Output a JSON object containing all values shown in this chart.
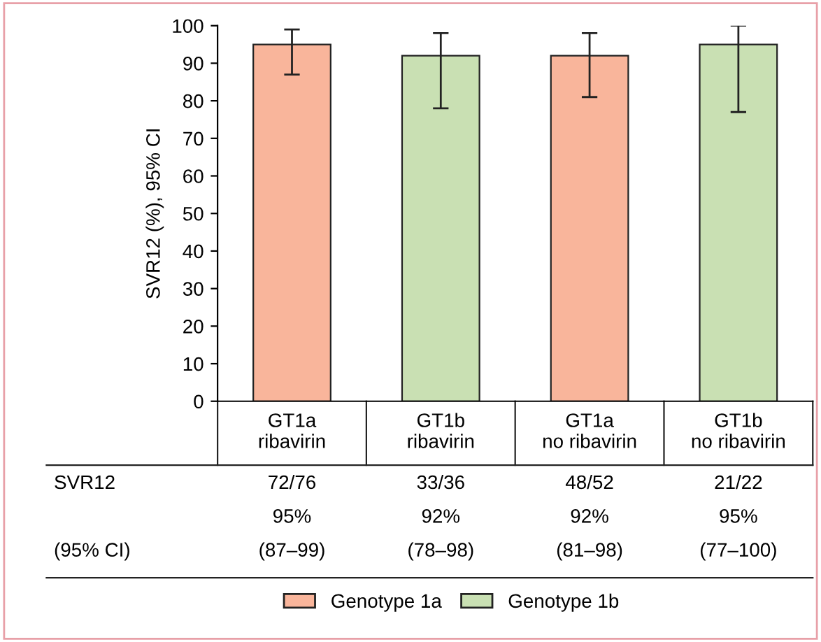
{
  "chart_data": {
    "type": "bar",
    "ylabel": "SVR12 (%), 95% CI",
    "categories": [
      "GT1a\nribavirin",
      "GT1b\nribavirin",
      "GT1a\nno ribavirin",
      "GT1b\nno ribavirin"
    ],
    "series": [
      {
        "name": "Genotype 1a",
        "color": "#f9b59b",
        "values": [
          95,
          null,
          92,
          null
        ],
        "errors": [
          [
            87,
            99
          ],
          null,
          [
            81,
            98
          ],
          null
        ]
      },
      {
        "name": "Genotype 1b",
        "color": "#c9e0b3",
        "values": [
          null,
          92,
          null,
          95
        ],
        "errors": [
          null,
          [
            78,
            98
          ],
          null,
          [
            77,
            100
          ]
        ]
      }
    ],
    "value_labels": [
      "95%",
      "92%",
      "92%",
      "95%"
    ],
    "annotations": [
      "SVR12",
      "(95% CI)",
      "72/76",
      "33/36",
      "48/52",
      "21/22",
      "(87–99)",
      "(78–98)",
      "(81–98)",
      "(77–100)"
    ],
    "ylim": [
      0,
      100
    ],
    "yticks": [
      0,
      10,
      20,
      30,
      40,
      50,
      60,
      70,
      80,
      90,
      100
    ],
    "grid": false,
    "legend": "bottom"
  }
}
